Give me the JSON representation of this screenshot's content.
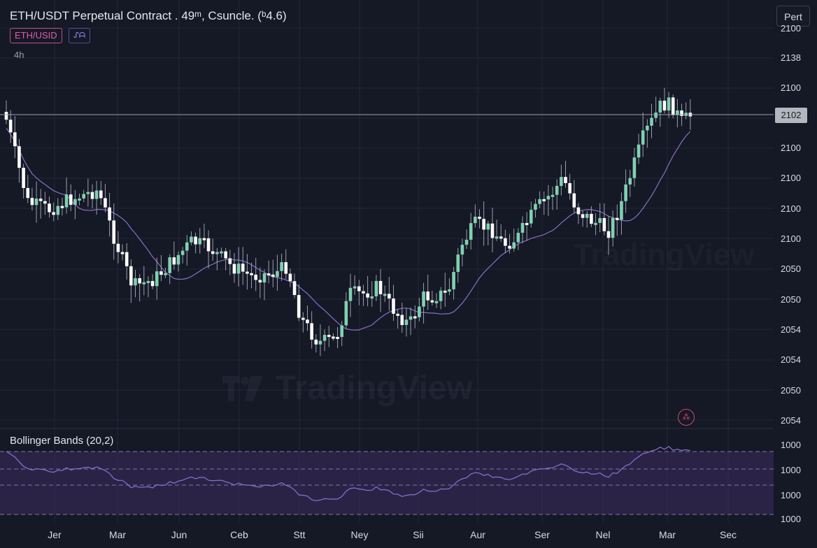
{
  "header": {
    "title": "ETH/USDT Perpetual Contract . 49ᵐ, Csuncle. (ᵇ4.6)",
    "symbol_pill": "ETH/USID",
    "indicator_pill": "ᔑᗩ",
    "timeframe": "4h",
    "top_right_button": "Pert"
  },
  "watermark": {
    "brand": "TradingView"
  },
  "price_scale": {
    "labels": [
      "2100",
      "2138",
      "2100",
      "2100",
      "2100",
      "2100",
      "2100",
      "2050",
      "2050",
      "2054",
      "2054",
      "2050",
      "2054"
    ],
    "current_price": "2102"
  },
  "indicator": {
    "title": "Bollinger Bands (20,2)",
    "scale_labels": [
      "1000",
      "1000",
      "1000",
      "1000"
    ]
  },
  "time_axis": {
    "labels": [
      "Jer",
      "Mar",
      "Jun",
      "Ceb",
      "Stt",
      "Ney",
      "Sii",
      "Aur",
      "Ser",
      "Nel",
      "Mar",
      "Sec"
    ]
  },
  "colors": {
    "background": "#151825",
    "candle_up": "#7fd1b1",
    "candle_down": "#ffffff",
    "ma_line": "#8a6fc9",
    "band_fill": "#3a2c5e",
    "alert": "#d04a6e"
  },
  "chart_data": {
    "type": "candlestick",
    "price_scale_labels": [
      "2100",
      "2138",
      "2100",
      "2100",
      "2100",
      "2100",
      "2100",
      "2050",
      "2050",
      "2054",
      "2054",
      "2050",
      "2054"
    ],
    "current_price": 2102,
    "x_labels": [
      "Jer",
      "Mar",
      "Jun",
      "Ceb",
      "Stt",
      "Ney",
      "Sii",
      "Aur",
      "Ser",
      "Nel",
      "Mar",
      "Sec"
    ],
    "overlay": "moving-average",
    "sub_indicator": "Bollinger Bands (20,2)"
  }
}
